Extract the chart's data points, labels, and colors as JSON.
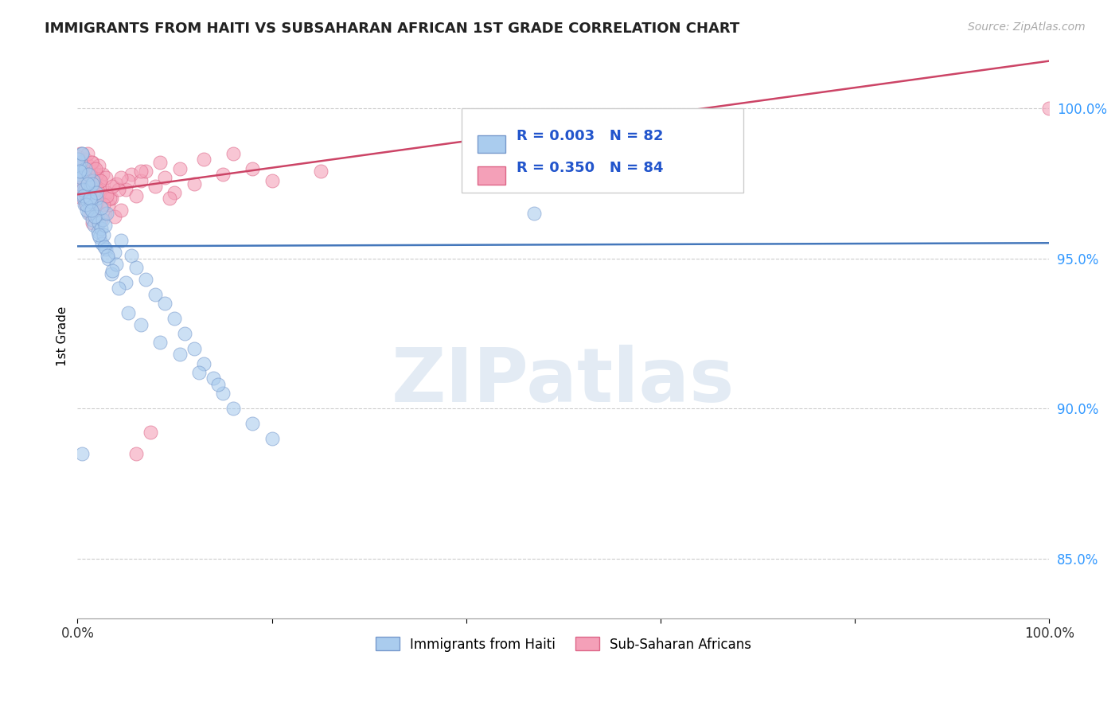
{
  "title": "IMMIGRANTS FROM HAITI VS SUBSAHARAN AFRICAN 1ST GRADE CORRELATION CHART",
  "source_text": "Source: ZipAtlas.com",
  "ylabel": "1st Grade",
  "xlim": [
    0.0,
    100.0
  ],
  "ylim": [
    83.0,
    101.8
  ],
  "yticks": [
    85.0,
    90.0,
    95.0,
    100.0
  ],
  "ytick_labels": [
    "85.0%",
    "90.0%",
    "95.0%",
    "100.0%"
  ],
  "xticks": [
    0.0,
    20.0,
    40.0,
    60.0,
    80.0,
    100.0
  ],
  "xtick_labels": [
    "0.0%",
    "",
    "",
    "",
    "",
    "100.0%"
  ],
  "haiti_color": "#aaccee",
  "haiti_edge": "#7799cc",
  "africa_color": "#f4a0b8",
  "africa_edge": "#dd6688",
  "haiti_line_color": "#4477bb",
  "africa_line_color": "#cc4466",
  "haiti_R": 0.003,
  "haiti_N": 82,
  "africa_R": 0.35,
  "africa_N": 84,
  "legend_label_haiti": "Immigrants from Haiti",
  "legend_label_africa": "Sub-Saharan Africans",
  "watermark": "ZIPatlas",
  "background_color": "#ffffff",
  "haiti_scatter_x": [
    0.1,
    0.2,
    0.3,
    0.4,
    0.5,
    0.6,
    0.7,
    0.8,
    0.9,
    1.0,
    1.1,
    1.2,
    1.3,
    1.4,
    1.5,
    1.6,
    1.7,
    1.8,
    1.9,
    2.0,
    2.1,
    2.2,
    2.3,
    2.4,
    2.5,
    2.6,
    2.7,
    2.8,
    2.9,
    3.0,
    3.2,
    3.5,
    3.8,
    4.0,
    4.5,
    5.0,
    5.5,
    6.0,
    7.0,
    8.0,
    9.0,
    10.0,
    11.0,
    12.0,
    13.0,
    14.0,
    15.0,
    16.0,
    18.0,
    20.0,
    0.15,
    0.35,
    0.55,
    0.75,
    0.95,
    1.15,
    1.35,
    1.55,
    1.75,
    1.95,
    2.15,
    2.45,
    2.75,
    3.1,
    3.6,
    4.2,
    5.2,
    6.5,
    8.5,
    10.5,
    12.5,
    14.5,
    0.05,
    0.25,
    0.45,
    0.65,
    0.85,
    1.05,
    1.25,
    1.45,
    47.0,
    0.5
  ],
  "haiti_scatter_y": [
    97.8,
    97.5,
    98.2,
    97.9,
    98.5,
    97.0,
    96.8,
    97.3,
    97.1,
    96.9,
    96.5,
    97.2,
    96.7,
    97.4,
    96.3,
    97.6,
    96.1,
    96.8,
    97.0,
    96.4,
    95.9,
    96.2,
    95.7,
    96.0,
    95.5,
    96.3,
    95.8,
    96.1,
    95.3,
    96.5,
    95.0,
    94.5,
    95.2,
    94.8,
    95.6,
    94.2,
    95.1,
    94.7,
    94.3,
    93.8,
    93.5,
    93.0,
    92.5,
    92.0,
    91.5,
    91.0,
    90.5,
    90.0,
    89.5,
    89.0,
    98.1,
    97.7,
    97.3,
    98.0,
    96.6,
    97.8,
    96.9,
    97.5,
    96.4,
    97.2,
    95.8,
    96.7,
    95.4,
    95.1,
    94.6,
    94.0,
    93.2,
    92.8,
    92.2,
    91.8,
    91.2,
    90.8,
    98.3,
    97.9,
    98.5,
    97.1,
    96.8,
    97.5,
    97.0,
    96.6,
    96.5,
    88.5
  ],
  "africa_scatter_x": [
    0.1,
    0.2,
    0.3,
    0.4,
    0.5,
    0.6,
    0.7,
    0.8,
    0.9,
    1.0,
    1.1,
    1.2,
    1.3,
    1.4,
    1.5,
    1.6,
    1.7,
    1.8,
    1.9,
    2.0,
    2.2,
    2.4,
    2.6,
    2.8,
    3.0,
    3.2,
    3.5,
    3.8,
    4.0,
    4.5,
    5.0,
    5.5,
    6.0,
    6.5,
    7.0,
    8.0,
    9.0,
    10.0,
    12.0,
    15.0,
    18.0,
    20.0,
    25.0,
    0.15,
    0.35,
    0.55,
    0.75,
    0.95,
    1.15,
    1.35,
    1.55,
    1.75,
    1.95,
    2.15,
    2.5,
    2.9,
    3.3,
    4.2,
    5.2,
    6.5,
    8.5,
    10.5,
    13.0,
    16.0,
    0.05,
    0.25,
    0.45,
    0.65,
    0.85,
    1.05,
    1.25,
    1.45,
    1.65,
    1.85,
    2.05,
    2.35,
    2.65,
    3.0,
    3.6,
    4.5,
    6.0,
    7.5,
    9.5,
    100.0
  ],
  "africa_scatter_y": [
    97.8,
    98.2,
    98.5,
    97.5,
    97.0,
    98.0,
    97.3,
    98.3,
    96.8,
    97.6,
    98.1,
    97.2,
    96.5,
    97.9,
    96.2,
    97.4,
    98.0,
    96.7,
    97.1,
    96.9,
    97.6,
    96.3,
    97.8,
    96.5,
    97.2,
    96.8,
    97.0,
    96.4,
    97.5,
    96.6,
    97.3,
    97.8,
    97.1,
    97.6,
    97.9,
    97.4,
    97.7,
    97.2,
    97.5,
    97.8,
    98.0,
    97.6,
    97.9,
    98.2,
    97.4,
    97.7,
    98.0,
    97.3,
    97.6,
    97.9,
    98.2,
    97.5,
    97.8,
    98.1,
    97.4,
    97.7,
    97.0,
    97.3,
    97.6,
    97.9,
    98.2,
    98.0,
    98.3,
    98.5,
    98.4,
    97.8,
    98.1,
    97.5,
    97.2,
    98.5,
    97.8,
    98.2,
    97.5,
    98.0,
    97.3,
    97.6,
    96.8,
    97.1,
    97.4,
    97.7,
    88.5,
    89.2,
    97.0,
    100.0
  ]
}
